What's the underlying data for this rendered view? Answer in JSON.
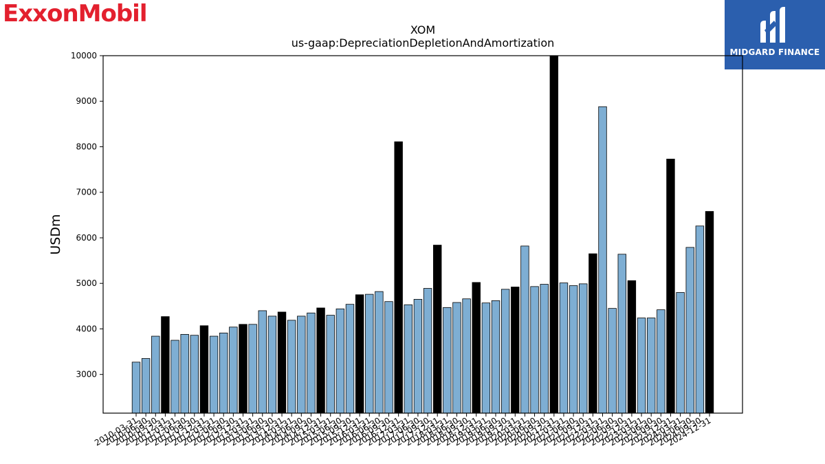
{
  "header": {
    "left_logo_text": "ExxonMobil",
    "right_logo_text": "MIDGARD FINANCE",
    "right_logo_icon": "midgard-m-icon"
  },
  "colors": {
    "bar_light": "#7eaed3",
    "bar_dark": "#000000",
    "brand_red": "#e3202e",
    "brand_blue": "#2b5fae"
  },
  "chart_data": {
    "type": "bar",
    "title": "XOM",
    "subtitle": "us-gaap:DepreciationDepletionAndAmortization",
    "xlabel": "",
    "ylabel": "USDm",
    "ylim": [
      2150,
      10000
    ],
    "yticks": [
      3000,
      4000,
      5000,
      6000,
      7000,
      8000,
      9000,
      10000
    ],
    "grid": false,
    "categories": [
      "2010-03-31",
      "2010-06-30",
      "2010-09-30",
      "2010-12-31",
      "2011-03-31",
      "2011-06-30",
      "2011-09-30",
      "2011-12-31",
      "2012-03-31",
      "2012-06-30",
      "2012-09-30",
      "2012-12-31",
      "2013-03-31",
      "2013-06-30",
      "2013-09-30",
      "2013-12-31",
      "2014-03-31",
      "2014-06-30",
      "2014-09-30",
      "2014-12-31",
      "2015-03-31",
      "2015-06-30",
      "2015-09-30",
      "2015-12-31",
      "2016-03-31",
      "2016-06-30",
      "2016-09-30",
      "2016-12-31",
      "2017-03-31",
      "2017-06-30",
      "2017-09-30",
      "2017-12-31",
      "2018-03-31",
      "2018-06-30",
      "2018-09-30",
      "2018-12-31",
      "2019-03-31",
      "2019-06-30",
      "2019-09-30",
      "2019-12-31",
      "2020-03-31",
      "2020-06-30",
      "2020-09-30",
      "2020-12-31",
      "2021-03-31",
      "2021-06-30",
      "2021-09-30",
      "2021-12-31",
      "2022-03-31",
      "2022-06-30",
      "2022-09-30",
      "2022-12-31",
      "2023-03-31",
      "2023-06-30",
      "2023-09-30",
      "2023-12-31",
      "2024-03-31",
      "2024-06-30",
      "2024-09-30",
      "2024-12-31"
    ],
    "values": [
      3270,
      3350,
      3840,
      4270,
      3750,
      3880,
      3860,
      4070,
      3840,
      3910,
      4040,
      4100,
      4100,
      4400,
      4280,
      4370,
      4190,
      4280,
      4350,
      4460,
      4300,
      4440,
      4540,
      4750,
      4760,
      4820,
      4600,
      8110,
      4530,
      4650,
      4890,
      5840,
      4470,
      4580,
      4660,
      5020,
      4570,
      4620,
      4870,
      4920,
      5820,
      4930,
      4980,
      10000,
      5010,
      4950,
      4990,
      5650,
      8880,
      4450,
      5640,
      5060,
      4240,
      4240,
      4420,
      7730,
      4800,
      5790,
      6260,
      6580
    ],
    "highlighted": [
      false,
      false,
      false,
      true,
      false,
      false,
      false,
      true,
      false,
      false,
      false,
      true,
      false,
      false,
      false,
      true,
      false,
      false,
      false,
      true,
      false,
      false,
      false,
      true,
      false,
      false,
      false,
      true,
      false,
      false,
      false,
      true,
      false,
      false,
      false,
      true,
      false,
      false,
      false,
      true,
      false,
      false,
      false,
      true,
      false,
      false,
      false,
      true,
      false,
      false,
      false,
      true,
      false,
      false,
      false,
      true,
      false,
      false,
      false,
      true
    ]
  }
}
